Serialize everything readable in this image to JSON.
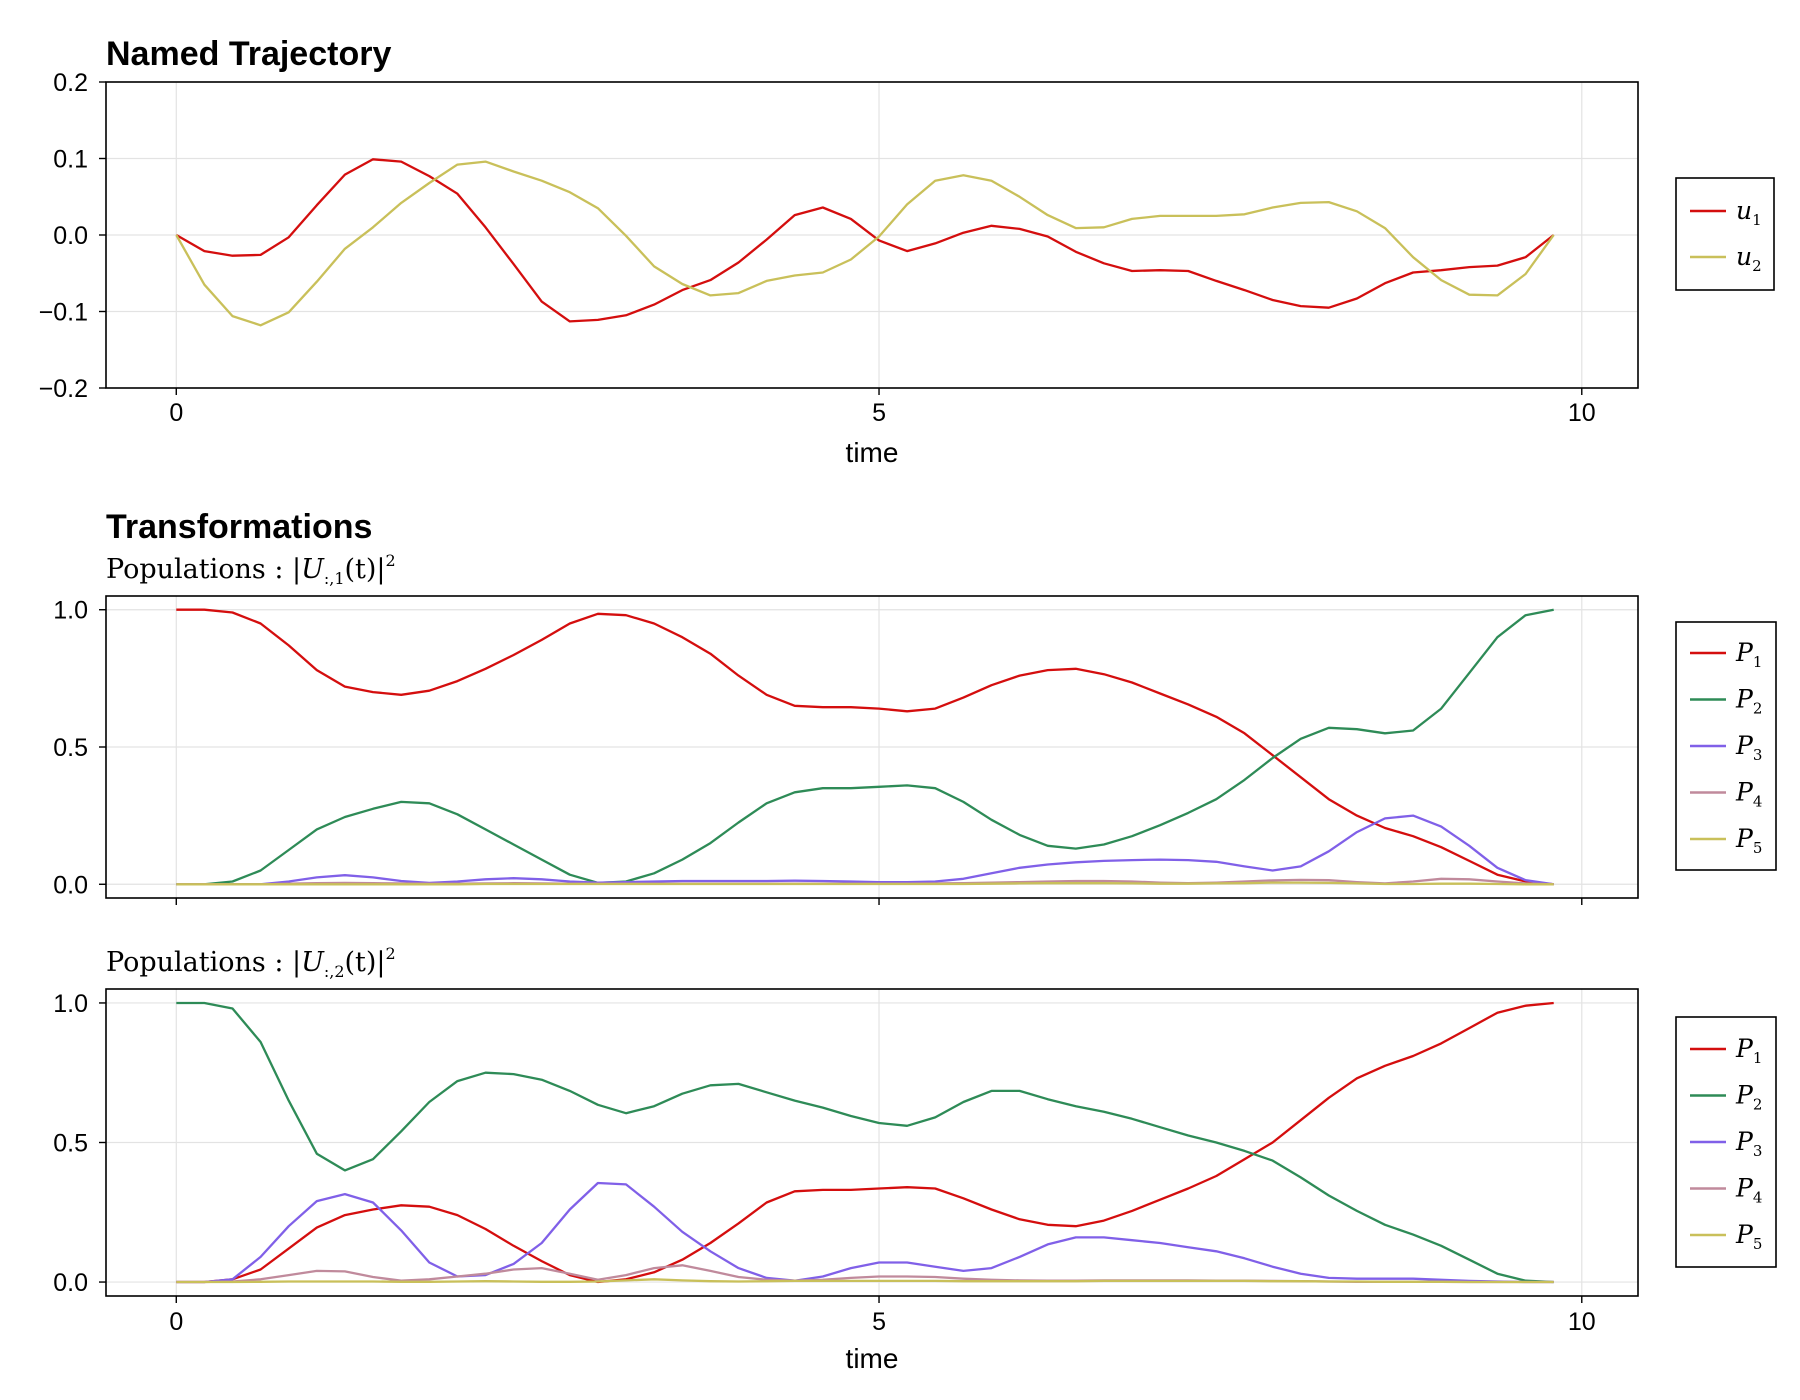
{
  "chart_data": [
    {
      "type": "line",
      "title": "Named Trajectory",
      "subtitle": "",
      "xlabel": "time",
      "ylabel": "",
      "xlim": [
        -0.5,
        10.4
      ],
      "ylim": [
        -0.2,
        0.2
      ],
      "xticks": [
        0,
        5,
        10
      ],
      "xtick_labels": [
        "0",
        "5",
        "10"
      ],
      "yticks": [
        0.2,
        0.1,
        0.0,
        -0.1,
        -0.2
      ],
      "ytick_labels": [
        "0.2",
        "0.1",
        "0.0",
        "−0.1",
        "−0.2"
      ],
      "grid": true,
      "legend_position": "right",
      "x": [
        0,
        0.2,
        0.4,
        0.6,
        0.8,
        1.0,
        1.2,
        1.4,
        1.6,
        1.8,
        2.0,
        2.2,
        2.4,
        2.6,
        2.8,
        3.0,
        3.2,
        3.4,
        3.6,
        3.8,
        4.0,
        4.2,
        4.4,
        4.6,
        4.8,
        5.0,
        5.2,
        5.4,
        5.6,
        5.8,
        6.0,
        6.2,
        6.4,
        6.6,
        6.8,
        7.0,
        7.2,
        7.4,
        7.6,
        7.8,
        8.0,
        8.2,
        8.4,
        8.6,
        8.8,
        9.0,
        9.2,
        9.4,
        9.6,
        9.8
      ],
      "series": [
        {
          "name": "u1",
          "name_main": "u",
          "name_sub": "1",
          "color": "#d40e0e",
          "values": [
            0,
            -0.021,
            -0.027,
            -0.026,
            -0.003,
            0.039,
            0.079,
            0.099,
            0.096,
            0.077,
            0.054,
            0.01,
            -0.038,
            -0.087,
            -0.113,
            -0.111,
            -0.105,
            -0.091,
            -0.072,
            -0.059,
            -0.036,
            -0.006,
            0.026,
            0.036,
            0.021,
            -0.007,
            -0.021,
            -0.011,
            0.003,
            0.012,
            0.008,
            -0.002,
            -0.022,
            -0.037,
            -0.047,
            -0.046,
            -0.047,
            -0.06,
            -0.072,
            -0.085,
            -0.093,
            -0.095,
            -0.083,
            -0.063,
            -0.049,
            -0.046,
            -0.042,
            -0.04,
            -0.029,
            0
          ]
        },
        {
          "name": "u2",
          "name_main": "u",
          "name_sub": "2",
          "color": "#c9c05a",
          "values": [
            0,
            -0.065,
            -0.106,
            -0.118,
            -0.101,
            -0.061,
            -0.018,
            0.01,
            0.042,
            0.068,
            0.092,
            0.096,
            0.083,
            0.071,
            0.056,
            0.035,
            -0.001,
            -0.041,
            -0.064,
            -0.079,
            -0.076,
            -0.06,
            -0.053,
            -0.049,
            -0.032,
            -0.002,
            0.04,
            0.071,
            0.078,
            0.071,
            0.05,
            0.026,
            0.009,
            0.01,
            0.021,
            0.025,
            0.025,
            0.025,
            0.027,
            0.036,
            0.042,
            0.043,
            0.031,
            0.009,
            -0.029,
            -0.059,
            -0.078,
            -0.079,
            -0.051,
            0
          ]
        }
      ]
    },
    {
      "type": "line",
      "title": "Transformations",
      "subtitle": "Populations : |U:,1(t)|2",
      "subtitle_parts": {
        "word": "Populations",
        "colon": ":",
        "expr_main": "|U",
        "expr_sub": ":,1",
        "expr_mid": "(t)|",
        "expr_sup": "2"
      },
      "xlabel": "",
      "ylabel": "",
      "xlim": [
        -0.5,
        10.4
      ],
      "ylim": [
        -0.05,
        1.05
      ],
      "xticks": [
        0,
        5,
        10
      ],
      "xtick_labels": [
        "",
        "",
        ""
      ],
      "yticks": [
        1.0,
        0.5,
        0.0
      ],
      "ytick_labels": [
        "1.0",
        "0.5",
        "0.0"
      ],
      "grid": true,
      "legend_position": "right",
      "x": [
        0,
        0.2,
        0.4,
        0.6,
        0.8,
        1.0,
        1.2,
        1.4,
        1.6,
        1.8,
        2.0,
        2.2,
        2.4,
        2.6,
        2.8,
        3.0,
        3.2,
        3.4,
        3.6,
        3.8,
        4.0,
        4.2,
        4.4,
        4.6,
        4.8,
        5.0,
        5.2,
        5.4,
        5.6,
        5.8,
        6.0,
        6.2,
        6.4,
        6.6,
        6.8,
        7.0,
        7.2,
        7.4,
        7.6,
        7.8,
        8.0,
        8.2,
        8.4,
        8.6,
        8.8,
        9.0,
        9.2,
        9.4,
        9.6,
        9.8
      ],
      "series": [
        {
          "name": "P1",
          "name_main": "P",
          "name_sub": "1",
          "color": "#d40e0e",
          "values": [
            1,
            1,
            0.99,
            0.95,
            0.87,
            0.78,
            0.72,
            0.7,
            0.69,
            0.705,
            0.74,
            0.785,
            0.835,
            0.89,
            0.95,
            0.985,
            0.98,
            0.95,
            0.9,
            0.84,
            0.76,
            0.69,
            0.65,
            0.645,
            0.645,
            0.64,
            0.63,
            0.64,
            0.68,
            0.725,
            0.76,
            0.78,
            0.785,
            0.765,
            0.735,
            0.695,
            0.655,
            0.61,
            0.55,
            0.47,
            0.39,
            0.31,
            0.25,
            0.205,
            0.175,
            0.135,
            0.085,
            0.035,
            0.01,
            0
          ]
        },
        {
          "name": "P2",
          "name_main": "P",
          "name_sub": "2",
          "color": "#2e8b57",
          "values": [
            0,
            0,
            0.01,
            0.05,
            0.125,
            0.2,
            0.245,
            0.275,
            0.3,
            0.295,
            0.255,
            0.2,
            0.145,
            0.09,
            0.035,
            0.005,
            0.01,
            0.04,
            0.09,
            0.15,
            0.225,
            0.295,
            0.335,
            0.35,
            0.35,
            0.355,
            0.36,
            0.35,
            0.3,
            0.235,
            0.18,
            0.14,
            0.13,
            0.145,
            0.175,
            0.215,
            0.26,
            0.31,
            0.38,
            0.46,
            0.53,
            0.57,
            0.565,
            0.55,
            0.56,
            0.64,
            0.77,
            0.9,
            0.98,
            1
          ]
        },
        {
          "name": "P3",
          "name_main": "P",
          "name_sub": "3",
          "color": "#8060e8",
          "values": [
            0,
            0,
            0,
            0,
            0.01,
            0.025,
            0.033,
            0.025,
            0.012,
            0.005,
            0.01,
            0.018,
            0.022,
            0.018,
            0.01,
            0.006,
            0.008,
            0.01,
            0.012,
            0.012,
            0.012,
            0.012,
            0.013,
            0.012,
            0.01,
            0.008,
            0.008,
            0.01,
            0.02,
            0.04,
            0.06,
            0.072,
            0.08,
            0.085,
            0.088,
            0.09,
            0.088,
            0.082,
            0.065,
            0.05,
            0.065,
            0.12,
            0.19,
            0.24,
            0.25,
            0.21,
            0.14,
            0.06,
            0.015,
            0
          ]
        },
        {
          "name": "P4",
          "name_main": "P",
          "name_sub": "4",
          "color": "#c08a9c",
          "values": [
            0,
            0,
            0,
            0,
            0.002,
            0.004,
            0.005,
            0.004,
            0.003,
            0.002,
            0.002,
            0.003,
            0.004,
            0.003,
            0.002,
            0.002,
            0.002,
            0.002,
            0.002,
            0.002,
            0.002,
            0.002,
            0.002,
            0.002,
            0.002,
            0.002,
            0.002,
            0.003,
            0.004,
            0.006,
            0.008,
            0.01,
            0.012,
            0.012,
            0.01,
            0.006,
            0.004,
            0.006,
            0.01,
            0.014,
            0.016,
            0.015,
            0.008,
            0.003,
            0.01,
            0.02,
            0.018,
            0.01,
            0.003,
            0
          ]
        },
        {
          "name": "P5",
          "name_main": "P",
          "name_sub": "5",
          "color": "#c9c05a",
          "values": [
            0,
            0,
            0,
            0,
            0,
            0,
            0,
            0,
            0,
            0,
            0,
            0.001,
            0.001,
            0.001,
            0.001,
            0.001,
            0.001,
            0.001,
            0.001,
            0.001,
            0.001,
            0.001,
            0.001,
            0.001,
            0.001,
            0.001,
            0.001,
            0.001,
            0.001,
            0.002,
            0.003,
            0.004,
            0.004,
            0.004,
            0.003,
            0.002,
            0.002,
            0.003,
            0.004,
            0.006,
            0.006,
            0.005,
            0.003,
            0.001,
            0.001,
            0.002,
            0.002,
            0.001,
            0,
            0
          ]
        }
      ]
    },
    {
      "type": "line",
      "title": "",
      "subtitle": "Populations : |U:,2(t)|2",
      "subtitle_parts": {
        "word": "Populations",
        "colon": ":",
        "expr_main": "|U",
        "expr_sub": ":,2",
        "expr_mid": "(t)|",
        "expr_sup": "2"
      },
      "xlabel": "time",
      "ylabel": "",
      "xlim": [
        -0.5,
        10.4
      ],
      "ylim": [
        -0.05,
        1.05
      ],
      "xticks": [
        0,
        5,
        10
      ],
      "xtick_labels": [
        "0",
        "5",
        "10"
      ],
      "yticks": [
        1.0,
        0.5,
        0.0
      ],
      "ytick_labels": [
        "1.0",
        "0.5",
        "0.0"
      ],
      "grid": true,
      "legend_position": "right",
      "x": [
        0,
        0.2,
        0.4,
        0.6,
        0.8,
        1.0,
        1.2,
        1.4,
        1.6,
        1.8,
        2.0,
        2.2,
        2.4,
        2.6,
        2.8,
        3.0,
        3.2,
        3.4,
        3.6,
        3.8,
        4.0,
        4.2,
        4.4,
        4.6,
        4.8,
        5.0,
        5.2,
        5.4,
        5.6,
        5.8,
        6.0,
        6.2,
        6.4,
        6.6,
        6.8,
        7.0,
        7.2,
        7.4,
        7.6,
        7.8,
        8.0,
        8.2,
        8.4,
        8.6,
        8.8,
        9.0,
        9.2,
        9.4,
        9.6,
        9.8
      ],
      "series": [
        {
          "name": "P1",
          "name_main": "P",
          "name_sub": "1",
          "color": "#d40e0e",
          "values": [
            0,
            0,
            0.01,
            0.045,
            0.12,
            0.195,
            0.24,
            0.26,
            0.275,
            0.27,
            0.24,
            0.19,
            0.13,
            0.075,
            0.025,
            0,
            0.01,
            0.035,
            0.08,
            0.14,
            0.21,
            0.285,
            0.325,
            0.33,
            0.33,
            0.335,
            0.34,
            0.335,
            0.3,
            0.26,
            0.225,
            0.205,
            0.2,
            0.22,
            0.255,
            0.295,
            0.335,
            0.38,
            0.44,
            0.5,
            0.58,
            0.66,
            0.73,
            0.775,
            0.81,
            0.855,
            0.91,
            0.965,
            0.99,
            1
          ]
        },
        {
          "name": "P2",
          "name_main": "P",
          "name_sub": "2",
          "color": "#2e8b57",
          "values": [
            1,
            1,
            0.98,
            0.86,
            0.65,
            0.46,
            0.4,
            0.44,
            0.54,
            0.645,
            0.72,
            0.75,
            0.745,
            0.725,
            0.685,
            0.635,
            0.605,
            0.63,
            0.675,
            0.705,
            0.71,
            0.68,
            0.65,
            0.625,
            0.595,
            0.57,
            0.56,
            0.59,
            0.645,
            0.685,
            0.685,
            0.655,
            0.63,
            0.61,
            0.585,
            0.555,
            0.525,
            0.5,
            0.47,
            0.435,
            0.375,
            0.31,
            0.255,
            0.205,
            0.17,
            0.13,
            0.08,
            0.03,
            0.005,
            0
          ]
        },
        {
          "name": "P3",
          "name_main": "P",
          "name_sub": "3",
          "color": "#8060e8",
          "values": [
            0,
            0,
            0.01,
            0.09,
            0.2,
            0.29,
            0.315,
            0.285,
            0.185,
            0.07,
            0.02,
            0.025,
            0.065,
            0.14,
            0.26,
            0.355,
            0.35,
            0.27,
            0.18,
            0.11,
            0.05,
            0.015,
            0.005,
            0.02,
            0.05,
            0.07,
            0.07,
            0.055,
            0.04,
            0.05,
            0.09,
            0.135,
            0.16,
            0.16,
            0.15,
            0.14,
            0.125,
            0.11,
            0.085,
            0.055,
            0.03,
            0.015,
            0.012,
            0.012,
            0.012,
            0.008,
            0.004,
            0.002,
            0,
            0
          ]
        },
        {
          "name": "P4",
          "name_main": "P",
          "name_sub": "4",
          "color": "#c08a9c",
          "values": [
            0,
            0,
            0.002,
            0.01,
            0.025,
            0.04,
            0.038,
            0.018,
            0.005,
            0.01,
            0.02,
            0.03,
            0.045,
            0.05,
            0.03,
            0.008,
            0.025,
            0.05,
            0.06,
            0.04,
            0.018,
            0.008,
            0.005,
            0.008,
            0.015,
            0.02,
            0.02,
            0.018,
            0.012,
            0.008,
            0.006,
            0.005,
            0.005,
            0.006,
            0.006,
            0.006,
            0.006,
            0.005,
            0.005,
            0.004,
            0.003,
            0.002,
            0.001,
            0.001,
            0.001,
            0.001,
            0,
            0,
            0,
            0
          ]
        },
        {
          "name": "P5",
          "name_main": "P",
          "name_sub": "5",
          "color": "#c9c05a",
          "values": [
            0,
            0,
            0,
            0.001,
            0.002,
            0.002,
            0.002,
            0.002,
            0.001,
            0.001,
            0.002,
            0.003,
            0.002,
            0.001,
            0.001,
            0.002,
            0.006,
            0.01,
            0.006,
            0.003,
            0.002,
            0.003,
            0.004,
            0.004,
            0.004,
            0.004,
            0.004,
            0.004,
            0.003,
            0.003,
            0.003,
            0.003,
            0.003,
            0.004,
            0.004,
            0.004,
            0.004,
            0.004,
            0.004,
            0.003,
            0.003,
            0.002,
            0.002,
            0.001,
            0.001,
            0.001,
            0,
            0,
            0,
            0
          ]
        }
      ]
    }
  ]
}
